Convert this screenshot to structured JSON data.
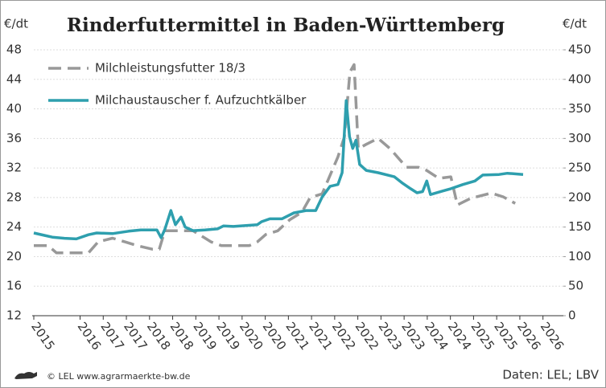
{
  "chart_data": {
    "type": "line",
    "title": "Rinderfuttermittel in Baden-Württemberg",
    "y_label": "€/dt",
    "y2_label": "€/dt",
    "source": "Daten: LEL; LBV",
    "credit": "© LEL www.agrarmaerkte-bw.de",
    "xlim": [
      2015,
      2026.44
    ],
    "xticks": [
      {
        "value": 2015,
        "label": "2015"
      },
      {
        "value": 2016,
        "label": "2016"
      },
      {
        "value": 2016.5,
        "label": "2017"
      },
      {
        "value": 2017,
        "label": "2017"
      },
      {
        "value": 2017.5,
        "label": "2018"
      },
      {
        "value": 2018,
        "label": "2018"
      },
      {
        "value": 2018.5,
        "label": "2019"
      },
      {
        "value": 2019,
        "label": "2019"
      },
      {
        "value": 2019.5,
        "label": "2020"
      },
      {
        "value": 2020,
        "label": "2020"
      },
      {
        "value": 2020.5,
        "label": "2021"
      },
      {
        "value": 2021,
        "label": "2021"
      },
      {
        "value": 2021.5,
        "label": "2022"
      },
      {
        "value": 2022,
        "label": "2022"
      },
      {
        "value": 2022.5,
        "label": "2023"
      },
      {
        "value": 2023,
        "label": "2023"
      },
      {
        "value": 2023.5,
        "label": "2024"
      },
      {
        "value": 2024,
        "label": "2024"
      },
      {
        "value": 2024.5,
        "label": "2025"
      },
      {
        "value": 2025,
        "label": "2025"
      },
      {
        "value": 2025.5,
        "label": "2026"
      },
      {
        "value": 2026,
        "label": "2026"
      }
    ],
    "ylim": [
      12,
      48
    ],
    "yticks": [
      12,
      16,
      20,
      24,
      28,
      32,
      36,
      40,
      44,
      48
    ],
    "y2lim": [
      0,
      450
    ],
    "y2ticks": [
      0,
      50,
      100,
      150,
      200,
      250,
      300,
      350,
      400,
      450
    ],
    "grid": true,
    "legend": "top-left",
    "series": [
      {
        "name": "Milchleistungsfutter 18/3",
        "color": "#999999",
        "style": "dashed",
        "axis": "y",
        "x": [
          2015.0,
          2015.31,
          2015.49,
          2016.18,
          2016.39,
          2016.7,
          2016.97,
          2017.23,
          2017.57,
          2017.71,
          2017.83,
          2018.18,
          2018.44,
          2018.83,
          2019.05,
          2019.66,
          2019.83,
          2020.01,
          2020.27,
          2020.53,
          2020.79,
          2020.97,
          2021.23,
          2021.4,
          2021.57,
          2021.71,
          2021.83,
          2021.92,
          2022.01,
          2022.18,
          2022.44,
          2022.7,
          2023.05,
          2023.31,
          2023.48,
          2023.75,
          2024.01,
          2024.15,
          2024.44,
          2024.88,
          2025.14,
          2025.4
        ],
        "values": [
          21.5,
          21.5,
          20.5,
          20.5,
          22,
          22.5,
          22,
          21.5,
          21,
          21,
          23.5,
          23.5,
          23.5,
          22,
          21.5,
          21.5,
          22,
          23,
          23.5,
          25,
          26,
          28,
          28.5,
          31,
          33.5,
          36.2,
          45,
          46,
          34.6,
          35.2,
          36,
          34.6,
          32.1,
          32.1,
          31.7,
          30.6,
          30.8,
          27,
          27.9,
          28.6,
          28.1,
          27.2
        ]
      },
      {
        "name": "Milchaustauscher f. Aufzuchtkälber",
        "color": "#2e9fae",
        "style": "solid",
        "axis": "y2",
        "x": [
          2015.0,
          2015.23,
          2015.4,
          2015.66,
          2015.92,
          2016.18,
          2016.36,
          2016.7,
          2017.05,
          2017.31,
          2017.66,
          2017.75,
          2017.83,
          2017.96,
          2018.06,
          2018.18,
          2018.27,
          2018.44,
          2018.7,
          2018.97,
          2019.1,
          2019.31,
          2019.83,
          2019.92,
          2020.1,
          2020.36,
          2020.62,
          2020.88,
          2021.09,
          2021.23,
          2021.4,
          2021.57,
          2021.66,
          2021.75,
          2021.82,
          2021.89,
          2021.96,
          2022.04,
          2022.18,
          2022.44,
          2022.79,
          2022.97,
          2023.14,
          2023.28,
          2023.4,
          2023.49,
          2023.57,
          2023.83,
          2024.01,
          2024.27,
          2024.53,
          2024.7,
          2025.05,
          2025.23,
          2025.57
        ],
        "values": [
          140,
          136,
          133,
          131,
          130,
          137,
          140,
          139,
          143,
          145,
          145,
          132,
          146,
          178,
          154,
          167,
          150,
          144,
          145,
          147,
          152,
          151,
          154,
          159,
          164,
          164,
          174,
          178,
          178,
          201,
          219,
          222,
          242,
          364,
          303,
          283,
          297,
          256,
          246,
          242,
          235,
          224,
          215,
          208,
          210,
          228,
          205,
          211,
          215,
          222,
          228,
          238,
          239,
          241,
          239
        ]
      }
    ]
  }
}
